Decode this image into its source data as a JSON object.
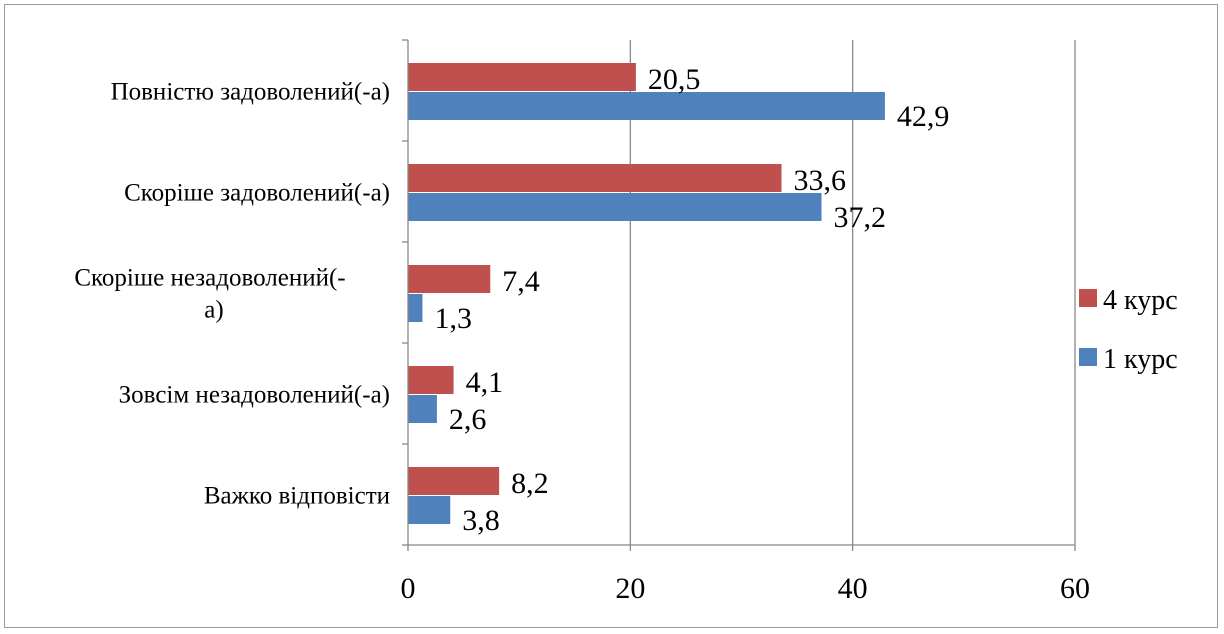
{
  "chart_data": {
    "type": "bar",
    "orientation": "horizontal",
    "categories": [
      [
        "Повністю задоволений(-а)"
      ],
      [
        "Скоріше задоволений(-а)"
      ],
      [
        "Скоріше незадоволений(-",
        "а)"
      ],
      [
        "Зовсім незадоволений(-а)"
      ],
      [
        "Важко відповісти"
      ]
    ],
    "series": [
      {
        "name": "4 курс",
        "color": "#c0504d",
        "values": [
          20.5,
          33.6,
          7.4,
          4.1,
          8.2
        ],
        "labels": [
          "20,5",
          "33,6",
          "7,4",
          "4,1",
          "8,2"
        ]
      },
      {
        "name": "1 курс",
        "color": "#4f81bd",
        "values": [
          42.9,
          37.2,
          1.3,
          2.6,
          3.8
        ],
        "labels": [
          "42,9",
          "37,2",
          "1,3",
          "2,6",
          "3,8"
        ]
      }
    ],
    "xlim": [
      0,
      60
    ],
    "xticks": [
      0,
      20,
      40,
      60
    ],
    "xtick_labels": [
      "0",
      "20",
      "40",
      "60"
    ],
    "grid": true,
    "legend_position": "right",
    "gridline_color": "#888888"
  }
}
